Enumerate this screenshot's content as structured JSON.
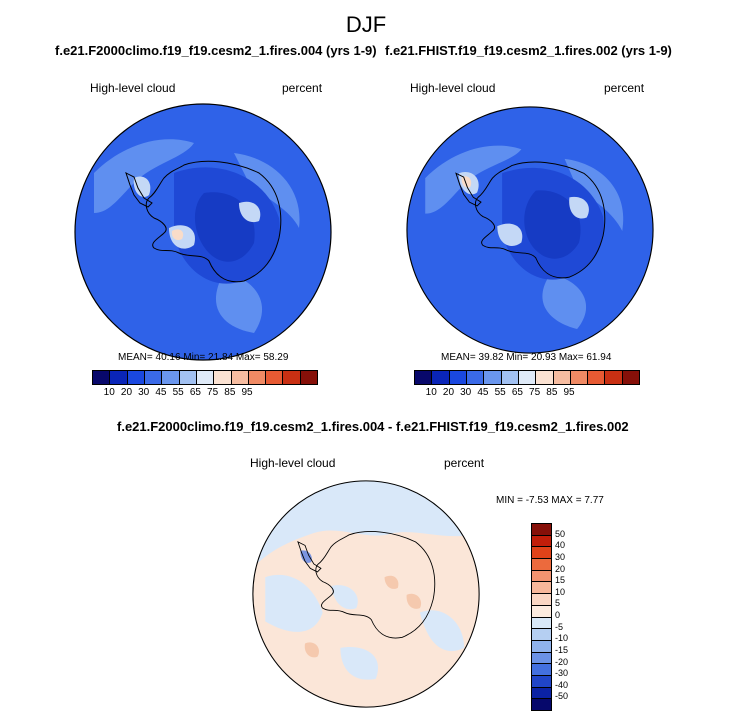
{
  "figure": {
    "title": "DJF"
  },
  "panels": [
    {
      "case": "f.e21.F2000climo.f19_f19.cesm2_1.fires.004 (yrs 1-9)",
      "left_label": "High-level cloud",
      "right_label": "percent",
      "stats": "MEAN=  40.16  Min=  21.84  Max=  58.29"
    },
    {
      "case": "f.e21.FHIST.f19_f19.cesm2_1.fires.002 (yrs 1-9)",
      "left_label": "High-level cloud",
      "right_label": "percent",
      "stats": "MEAN=  39.82  Min=  20.93  Max=  61.94"
    }
  ],
  "diff_panel": {
    "title": "f.e21.F2000climo.f19_f19.cesm2_1.fires.004 - f.e21.FHIST.f19_f19.cesm2_1.fires.002",
    "left_label": "High-level cloud",
    "right_label": "percent",
    "minmax": "MIN =  -7.53 MAX =  7.77"
  },
  "colorbar_main": {
    "ticks": [
      "10",
      "20",
      "30",
      "45",
      "55",
      "65",
      "75",
      "85",
      "95"
    ],
    "colors": [
      "#08086b",
      "#0a25b8",
      "#1a48e0",
      "#3a6ae8",
      "#6a96ee",
      "#a2c1f2",
      "#dfeaf8",
      "#fbe2d2",
      "#f6bca0",
      "#f08a64",
      "#e75a33",
      "#c93013",
      "#861009"
    ]
  },
  "colorbar_diff": {
    "ticks": [
      "50",
      "40",
      "30",
      "20",
      "15",
      "10",
      "5",
      "0",
      "-5",
      "-10",
      "-15",
      "-20",
      "-30",
      "-40",
      "-50"
    ],
    "colors": [
      "#861009",
      "#c21e0a",
      "#e04219",
      "#ec6a3d",
      "#f39370",
      "#f7b79a",
      "#fad6c3",
      "#fcebdf",
      "#d8e8f8",
      "#b5cff2",
      "#8fb2ec",
      "#6b92e6",
      "#4370df",
      "#2045c8",
      "#0b22a4",
      "#06086b"
    ]
  },
  "map_colors": {
    "base": "#2f62e8",
    "mid": "#1f49d6",
    "deep": "#163bc4",
    "light": "#5f8ff0",
    "pale": "#c4d8f6",
    "warm": "#f9dcc9",
    "diff_base": "#fbe6d8",
    "diff_cool": "#d9e8f9",
    "diff_warm": "#f5c9ae",
    "diff_dark": "#7a94e0"
  }
}
